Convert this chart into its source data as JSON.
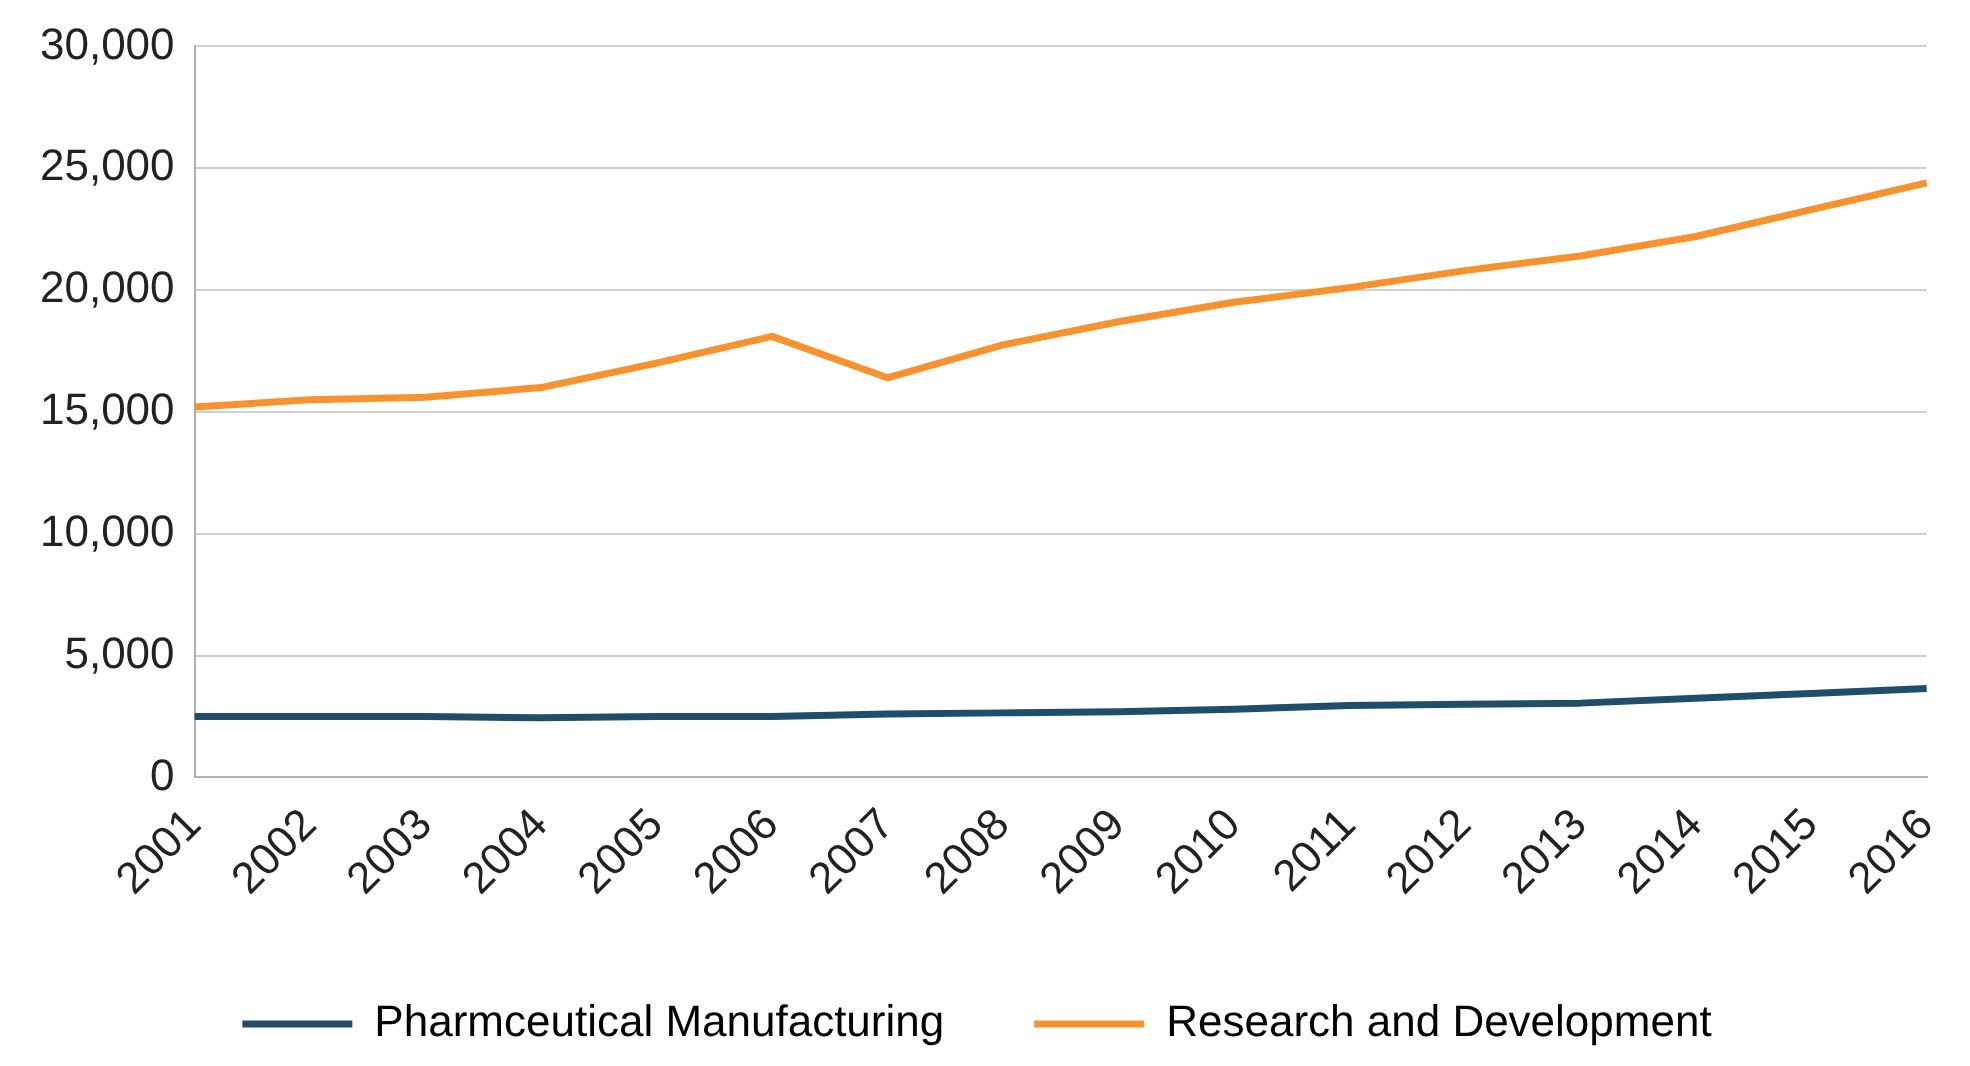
{
  "chart_data": {
    "type": "line",
    "categories": [
      "2001",
      "2002",
      "2003",
      "2004",
      "2005",
      "2006",
      "2007",
      "2008",
      "2009",
      "2010",
      "2011",
      "2012",
      "2013",
      "2014",
      "2015",
      "2016"
    ],
    "series": [
      {
        "name": "Pharmceutical Manufacturing",
        "color": "#1f4e6b",
        "values": [
          2500,
          2500,
          2500,
          2450,
          2500,
          2500,
          2600,
          2650,
          2700,
          2800,
          2950,
          3000,
          3050,
          3250,
          3450,
          3650
        ]
      },
      {
        "name": "Research and Development",
        "color": "#f7922e",
        "values": [
          15200,
          15500,
          15600,
          16000,
          17000,
          18100,
          16400,
          17750,
          18700,
          19500,
          20100,
          20800,
          21400,
          22200,
          23300,
          24400
        ]
      }
    ],
    "ylim": [
      0,
      30000
    ],
    "yticks": [
      {
        "value": 0,
        "label": "0"
      },
      {
        "value": 5000,
        "label": "5,000"
      },
      {
        "value": 10000,
        "label": "10,000"
      },
      {
        "value": 15000,
        "label": "15,000"
      },
      {
        "value": 20000,
        "label": "20,000"
      },
      {
        "value": 25000,
        "label": "25,000"
      },
      {
        "value": 30000,
        "label": "30,000"
      }
    ],
    "grid": "y",
    "legend": "bottom",
    "marker": "none",
    "line_style": "solid"
  }
}
